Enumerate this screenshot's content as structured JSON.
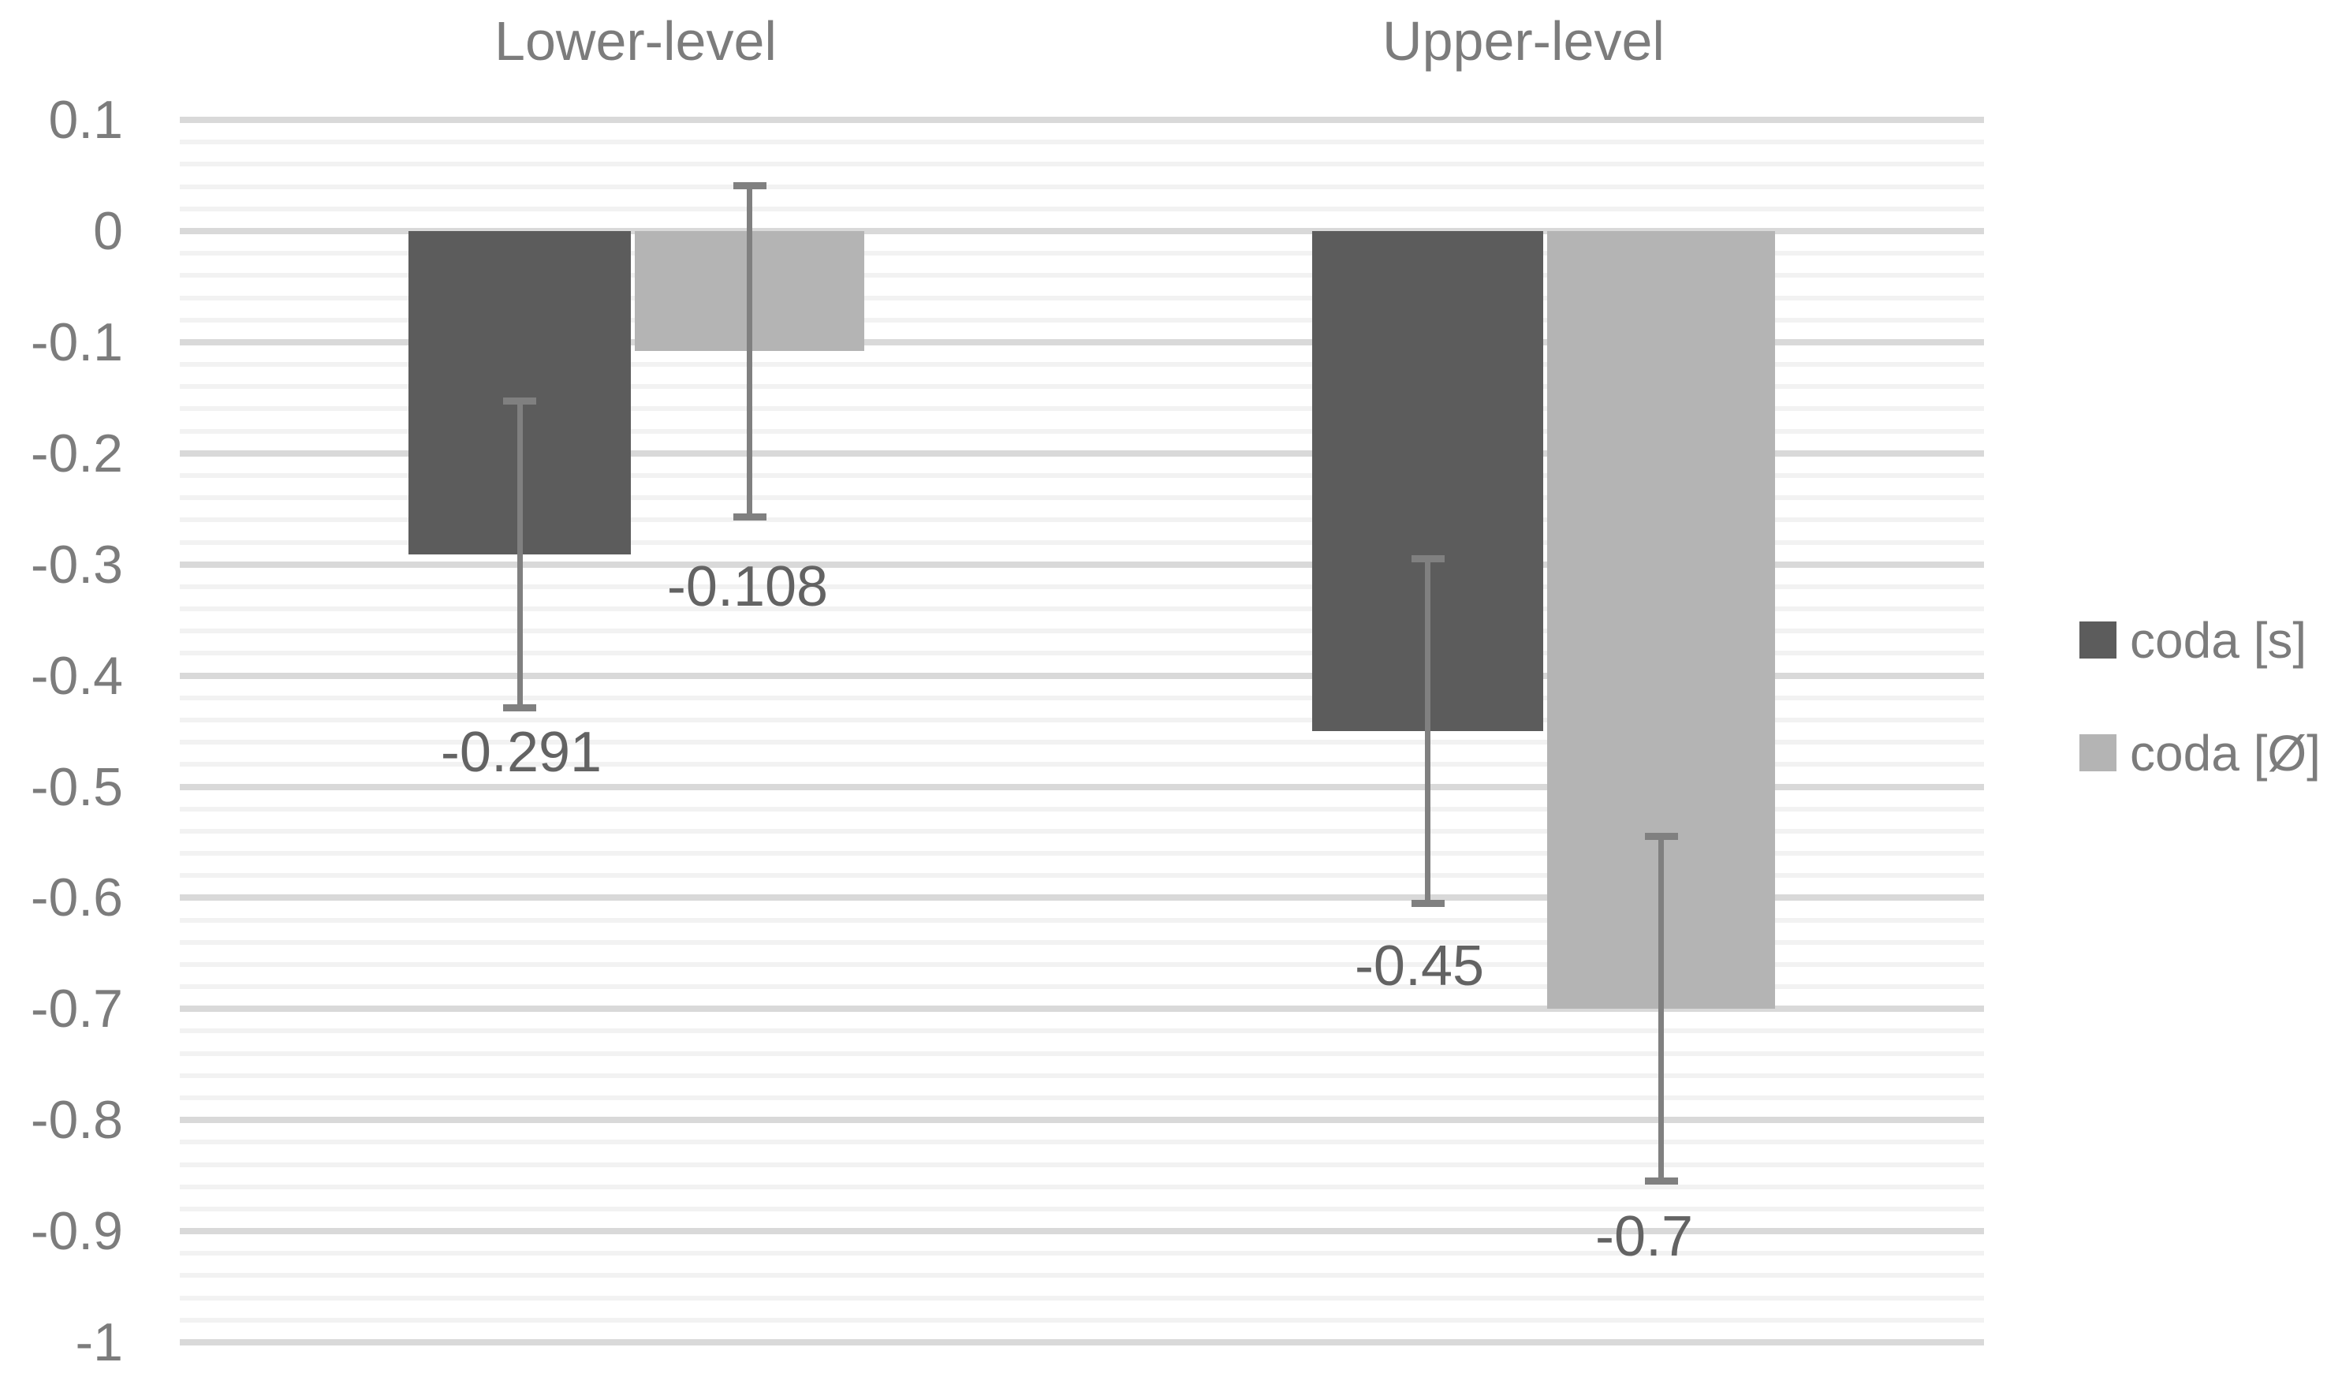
{
  "chart_data": {
    "type": "bar",
    "title": "",
    "xlabel": "",
    "ylabel": "",
    "categories": [
      "Lower-level",
      "Upper-level"
    ],
    "series": [
      {
        "name": "coda [s]",
        "color": "#5c5c5c",
        "values": [
          -0.291,
          -0.45
        ],
        "errors": [
          0.138,
          0.155
        ]
      },
      {
        "name": "coda [Ø]",
        "color": "#b4b4b4",
        "values": [
          -0.108,
          -0.7
        ],
        "errors": [
          0.149,
          0.155
        ]
      }
    ],
    "data_labels": [
      "-0.291",
      "-0.108",
      "-0.45",
      "-0.7"
    ],
    "y_axis": {
      "ticks": [
        "0.1",
        "0",
        "-0.1",
        "-0.2",
        "-0.3",
        "-0.4",
        "-0.5",
        "-0.6",
        "-0.7",
        "-0.8",
        "-0.9",
        "-1"
      ],
      "tick_values": [
        0.1,
        0,
        -0.1,
        -0.2,
        -0.3,
        -0.4,
        -0.5,
        -0.6,
        -0.7,
        -0.8,
        -0.9,
        -1
      ],
      "ylim": [
        -1,
        0.1
      ],
      "major_step": 0.1,
      "minor_step": 0.02
    },
    "grid": {
      "major_color": "#d9d9d9",
      "minor_color": "#f2f2f2",
      "grid_on": true
    },
    "error_bar_color": "#808080",
    "legend": {
      "position": "right",
      "items": [
        "coda [s]",
        "coda [Ø]"
      ]
    }
  }
}
